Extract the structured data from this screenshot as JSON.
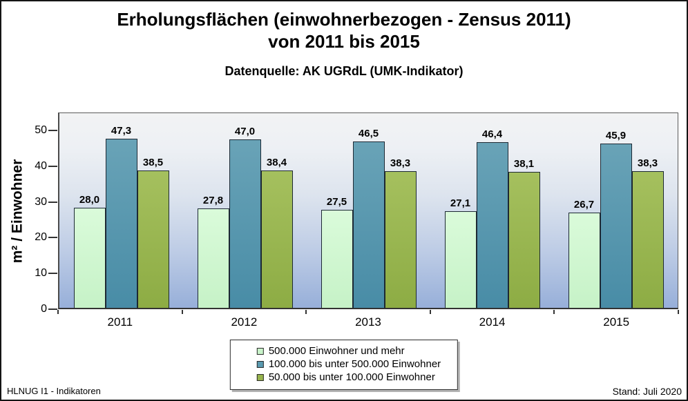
{
  "header": {
    "title_line1": "Erholungsflächen (einwohnerbezogen - Zensus 2011)",
    "title_line2": "von 2011 bis 2015",
    "subtitle": "Datenquelle: AK UGRdL (UMK-Indikator)"
  },
  "footer": {
    "left": "HLNUG I1 - Indikatoren",
    "right": "Stand: Juli 2020"
  },
  "chart_data": {
    "type": "bar",
    "title": "Erholungsflächen (einwohnerbezogen - Zensus 2011) von 2011 bis 2015",
    "subtitle": "Datenquelle: AK UGRdL (UMK-Indikator)",
    "xlabel": "",
    "ylabel": "m² / Einwohner",
    "ylim": [
      0,
      55
    ],
    "yticks": [
      0,
      10,
      20,
      30,
      40,
      50
    ],
    "grid": false,
    "legend_position": "bottom",
    "plot_background_gradient": [
      "#f2f3f4",
      "#97afd9"
    ],
    "categories": [
      "2011",
      "2012",
      "2013",
      "2014",
      "2015"
    ],
    "series": [
      {
        "name": "500.000 Einwohner und mehr",
        "values": [
          28.0,
          27.8,
          27.5,
          27.1,
          26.7
        ],
        "labels": [
          "28,0",
          "27,8",
          "27,5",
          "27,1",
          "26,7"
        ],
        "swatch": "#c9f4ca",
        "color_top": "#dafbda",
        "color_bottom": "#c6f2c7"
      },
      {
        "name": "100.000 bis unter 500.000 Einwohner",
        "values": [
          47.3,
          47.0,
          46.5,
          46.4,
          45.9
        ],
        "labels": [
          "47,3",
          "47,0",
          "46,5",
          "46,4",
          "45,9"
        ],
        "swatch": "#5a9ab0",
        "color_top": "#69a3b7",
        "color_bottom": "#488ca6"
      },
      {
        "name": "50.000 bis unter 100.000 Einwohner",
        "values": [
          38.5,
          38.4,
          38.3,
          38.1,
          38.3
        ],
        "labels": [
          "38,5",
          "38,4",
          "38,3",
          "38,1",
          "38,3"
        ],
        "swatch": "#97b44d",
        "color_top": "#a5c05e",
        "color_bottom": "#8dac44"
      }
    ]
  }
}
